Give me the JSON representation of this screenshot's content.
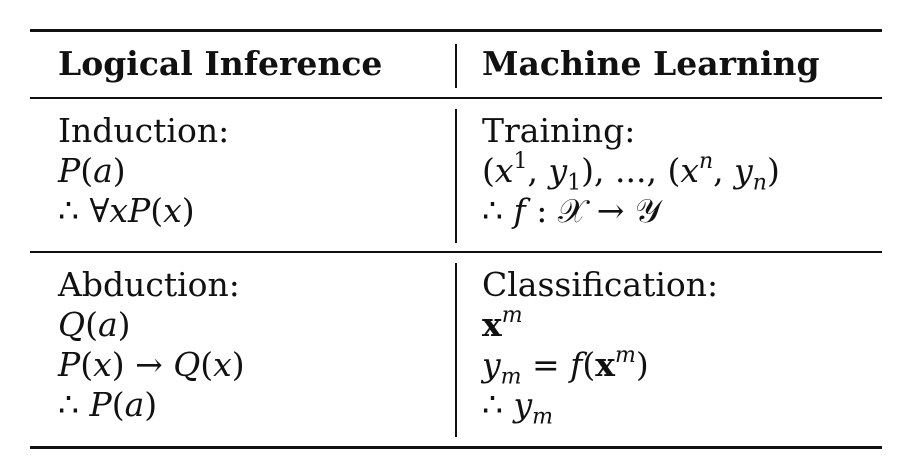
{
  "header": {
    "left": "Logical Inference",
    "right": "Machine Learning"
  },
  "rows": [
    {
      "left_title": "Induction:",
      "right_title": "Training:"
    },
    {
      "left_title": "Abduction:",
      "right_title": "Classification:"
    }
  ]
}
